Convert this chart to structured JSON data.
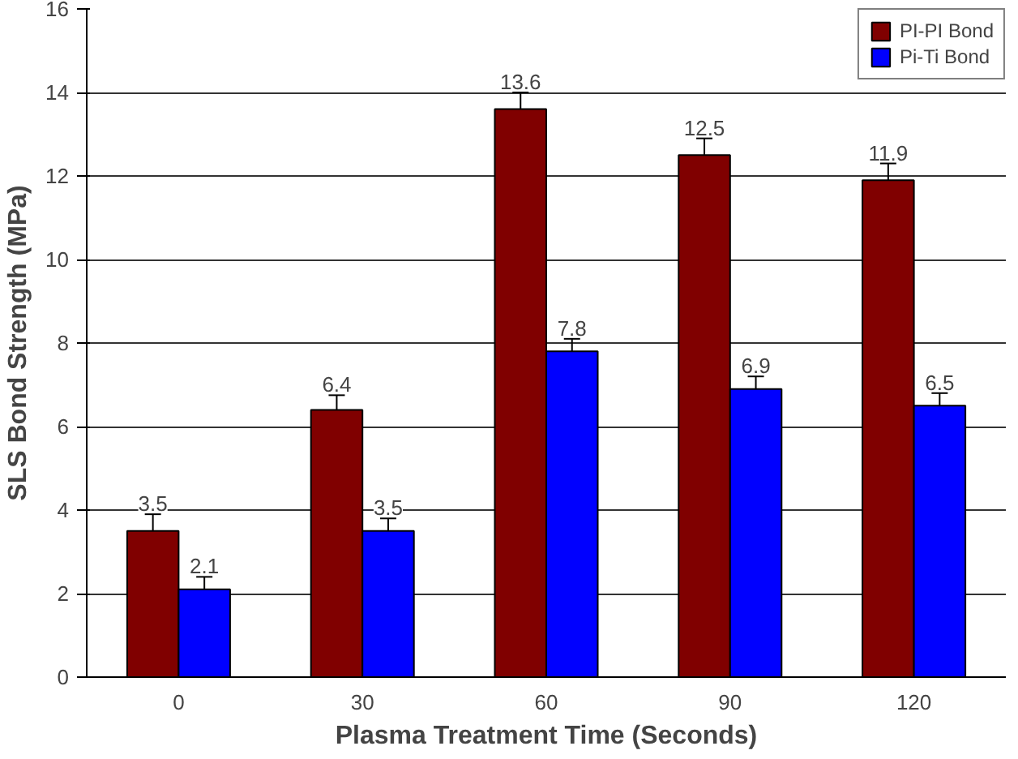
{
  "chart_data": {
    "type": "bar",
    "xlabel": "Plasma Treatment Time (Seconds)",
    "ylabel": "SLS Bond Strength (MPa)",
    "categories": [
      "0",
      "30",
      "60",
      "90",
      "120"
    ],
    "series": [
      {
        "name": "PI-PI Bond",
        "color": "#800000",
        "values": [
          3.5,
          6.4,
          13.6,
          12.5,
          11.9
        ],
        "errors": [
          0.4,
          0.35,
          0.4,
          0.4,
          0.4
        ]
      },
      {
        "name": "Pi-Ti Bond",
        "color": "#0000ff",
        "values": [
          2.1,
          3.5,
          7.8,
          6.9,
          6.5
        ],
        "errors": [
          0.3,
          0.3,
          0.3,
          0.3,
          0.3
        ]
      }
    ],
    "ylim": [
      0,
      16
    ],
    "yticks": [
      0,
      2,
      4,
      6,
      8,
      10,
      12,
      14,
      16
    ],
    "grid": "y",
    "legend": "top right",
    "data_labels": true
  }
}
